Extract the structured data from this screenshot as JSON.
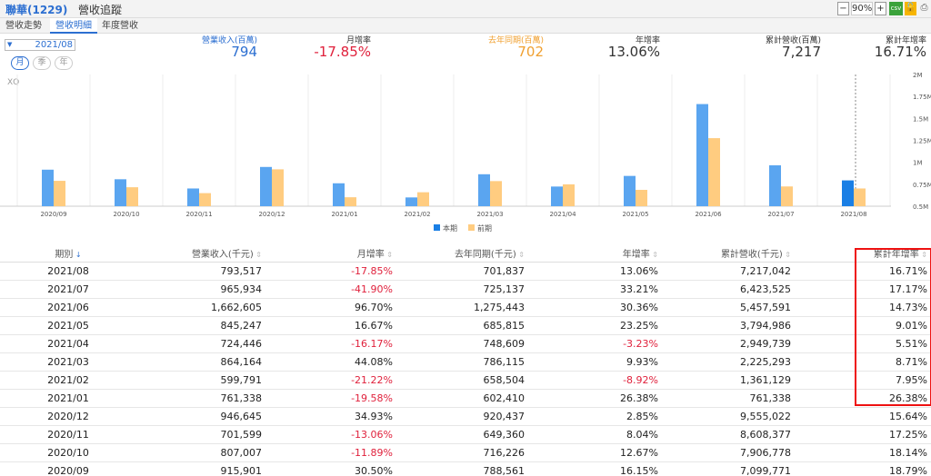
{
  "header": {
    "title": "聯華(1229)",
    "subtitle": "營收追蹤",
    "zoom": "90%",
    "csv": "csv"
  },
  "tabs": [
    {
      "label": "營收走勢"
    },
    {
      "label": "營收明細"
    },
    {
      "label": "年度營收"
    }
  ],
  "period": {
    "value": "2021/08",
    "modes": [
      "月",
      "季",
      "年"
    ]
  },
  "summary": [
    {
      "label": "營業收入(百萬)",
      "value": "794",
      "label_color": "#2c6fd1",
      "value_color": "#2c6fd1"
    },
    {
      "label": "月增率",
      "value": "-17.85%",
      "label_color": "#333",
      "value_color": "#e0213c"
    },
    {
      "label": "去年同期(百萬)",
      "value": "702",
      "label_color": "#f0a030",
      "value_color": "#f0a030"
    },
    {
      "label": "年增率",
      "value": "13.06%",
      "label_color": "#333",
      "value_color": "#333"
    },
    {
      "label": "累計營收(百萬)",
      "value": "7,217",
      "label_color": "#333",
      "value_color": "#333"
    },
    {
      "label": "累計年增率",
      "value": "16.71%",
      "label_color": "#333",
      "value_color": "#333"
    }
  ],
  "chart_data": {
    "type": "bar",
    "watermark": "XQ",
    "categories": [
      "2020/09",
      "2020/10",
      "2020/11",
      "2020/12",
      "2021/01",
      "2021/02",
      "2021/03",
      "2021/04",
      "2021/05",
      "2021/06",
      "2021/07",
      "2021/08"
    ],
    "series": [
      {
        "name": "本期",
        "color": "#5aa5f0",
        "values": [
          0.916,
          0.807,
          0.702,
          0.947,
          0.761,
          0.6,
          0.864,
          0.724,
          0.845,
          1.663,
          0.966,
          0.794
        ]
      },
      {
        "name": "前期",
        "color": "#ffcc80",
        "values": [
          0.789,
          0.716,
          0.649,
          0.92,
          0.602,
          0.659,
          0.786,
          0.749,
          0.686,
          1.275,
          0.725,
          0.702
        ]
      }
    ],
    "highlight_color": "#1a7fe5",
    "y_ticks": [
      0.5,
      0.75,
      1,
      1.25,
      1.5,
      1.75,
      2
    ],
    "y_tick_labels": [
      "0.5M",
      "0.75M",
      "1M",
      "1.25M",
      "1.5M",
      "1.75M",
      "2M"
    ],
    "ylim": [
      0.5,
      2
    ]
  },
  "table": {
    "headers": [
      "期別",
      "營業收入(千元)",
      "月增率",
      "去年同期(千元)",
      "年增率",
      "累計營收(千元)",
      "累計年增率"
    ],
    "rows": [
      [
        "2021/08",
        "793,517",
        "-17.85%",
        "701,837",
        "13.06%",
        "7,217,042",
        "16.71%"
      ],
      [
        "2021/07",
        "965,934",
        "-41.90%",
        "725,137",
        "33.21%",
        "6,423,525",
        "17.17%"
      ],
      [
        "2021/06",
        "1,662,605",
        "96.70%",
        "1,275,443",
        "30.36%",
        "5,457,591",
        "14.73%"
      ],
      [
        "2021/05",
        "845,247",
        "16.67%",
        "685,815",
        "23.25%",
        "3,794,986",
        "9.01%"
      ],
      [
        "2021/04",
        "724,446",
        "-16.17%",
        "748,609",
        "-3.23%",
        "2,949,739",
        "5.51%"
      ],
      [
        "2021/03",
        "864,164",
        "44.08%",
        "786,115",
        "9.93%",
        "2,225,293",
        "8.71%"
      ],
      [
        "2021/02",
        "599,791",
        "-21.22%",
        "658,504",
        "-8.92%",
        "1,361,129",
        "7.95%"
      ],
      [
        "2021/01",
        "761,338",
        "-19.58%",
        "602,410",
        "26.38%",
        "761,338",
        "26.38%"
      ],
      [
        "2020/12",
        "946,645",
        "34.93%",
        "920,437",
        "2.85%",
        "9,555,022",
        "15.64%"
      ],
      [
        "2020/11",
        "701,599",
        "-13.06%",
        "649,360",
        "8.04%",
        "8,608,377",
        "17.25%"
      ],
      [
        "2020/10",
        "807,007",
        "-11.89%",
        "716,226",
        "12.67%",
        "7,906,778",
        "18.14%"
      ],
      [
        "2020/09",
        "915,901",
        "30.50%",
        "788,561",
        "16.15%",
        "7,099,771",
        "18.79%"
      ]
    ]
  }
}
